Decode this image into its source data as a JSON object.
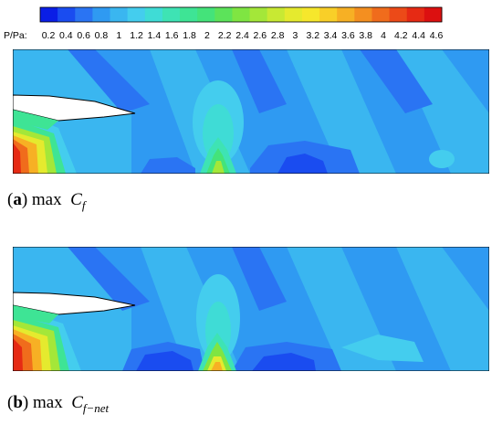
{
  "colorbar": {
    "label": "P/Pa:",
    "levels": [
      "0.2",
      "0.4",
      "0.6",
      "0.8",
      "1",
      "1.2",
      "1.4",
      "1.6",
      "1.8",
      "2",
      "2.2",
      "2.4",
      "2.6",
      "2.8",
      "3",
      "3.2",
      "3.4",
      "3.6",
      "3.8",
      "4",
      "4.2",
      "4.4",
      "4.6"
    ],
    "colors": [
      "#0a1ee6",
      "#1a4cf0",
      "#2a74f3",
      "#2f9af2",
      "#3ab6f0",
      "#44cdee",
      "#3fdcd6",
      "#3ee3b4",
      "#3ee495",
      "#44e37a",
      "#5ce35a",
      "#7fe542",
      "#a4e739",
      "#c8e933",
      "#e5ea2e",
      "#f6e72c",
      "#f9cf28",
      "#f7b024",
      "#f48f20",
      "#f06c1c",
      "#ec4a18",
      "#e62a14",
      "#dc1010"
    ]
  },
  "panels": [
    {
      "tag_open": "(",
      "tag_letter": "a",
      "tag_close": ")",
      "text": "max",
      "symbol": "C",
      "subscript": "f"
    },
    {
      "tag_open": "(",
      "tag_letter": "b",
      "tag_close": ")",
      "text": "max",
      "symbol": "C",
      "subscript": "f−net"
    }
  ]
}
